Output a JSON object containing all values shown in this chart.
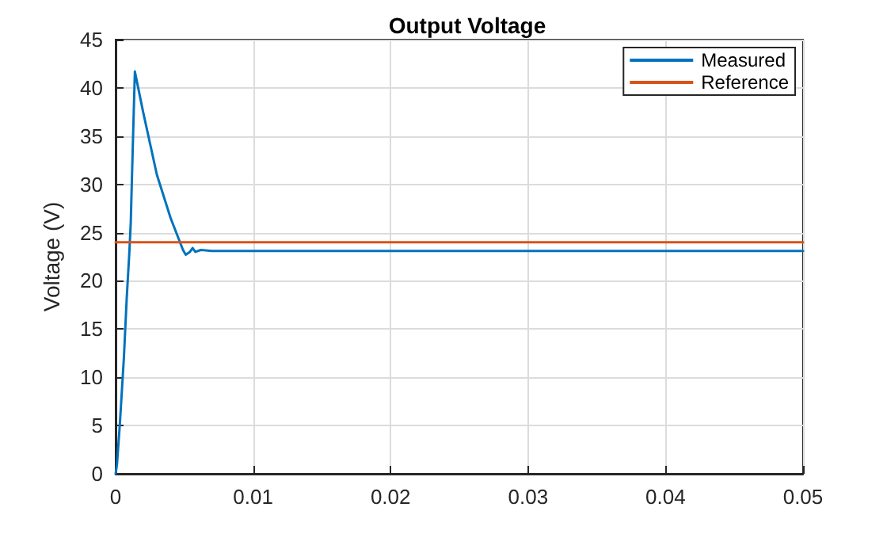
{
  "chart_data": {
    "type": "line",
    "title": "Output Voltage",
    "ylabel": "Voltage (V)",
    "xlim": [
      0,
      0.05
    ],
    "xticks": [
      0,
      0.01,
      0.02,
      0.03,
      0.04,
      0.05
    ],
    "ylim": [
      0,
      45
    ],
    "yticks": [
      0,
      5,
      10,
      15,
      20,
      25,
      30,
      35,
      40,
      45
    ],
    "grid": true,
    "legend": "top right",
    "marker": "none",
    "line_style": "solid",
    "series": [
      {
        "name": "Measured",
        "color": "#0072bd",
        "x": [
          0,
          0.0001,
          0.0003,
          0.0006,
          0.0008,
          0.001,
          0.0011,
          0.00125,
          0.0014,
          0.002,
          0.003,
          0.004,
          0.0049,
          0.0051,
          0.0054,
          0.0056,
          0.0058,
          0.0062,
          0.007,
          0.05
        ],
        "values": [
          0,
          1,
          5,
          12,
          18,
          23,
          26,
          34,
          41.7,
          37.5,
          31,
          26.5,
          23.2,
          22.7,
          23,
          23.4,
          23,
          23.2,
          23.1,
          23.1
        ]
      },
      {
        "name": "Reference",
        "color": "#d95319",
        "x": [
          0,
          0.05
        ],
        "values": [
          24,
          24
        ]
      }
    ]
  }
}
